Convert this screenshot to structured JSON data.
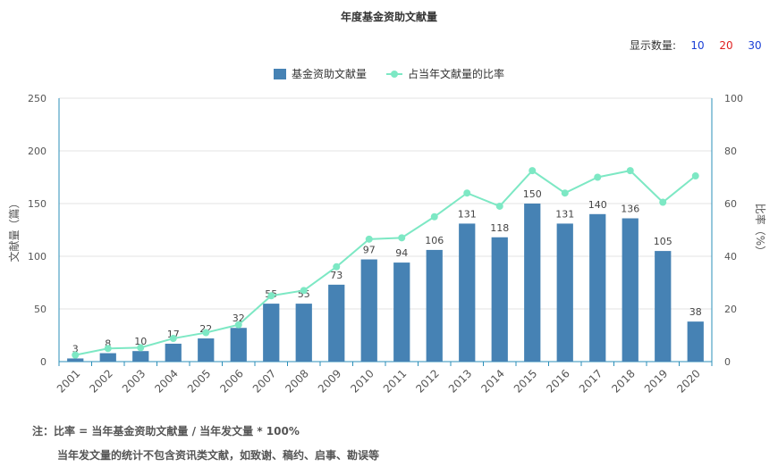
{
  "title": "年度基金资助文献量",
  "count_selector": {
    "label": "显示数量:",
    "options": [
      {
        "label": "10",
        "color": "#1a3fd6"
      },
      {
        "label": "20",
        "color": "#e02020"
      },
      {
        "label": "30",
        "color": "#1a3fd6"
      }
    ]
  },
  "legend": [
    {
      "label": "基金资助文献量",
      "color": "#4682b4",
      "kind": "bar"
    },
    {
      "label": "占当年文献量的比率",
      "color": "#7de8c4",
      "kind": "line"
    }
  ],
  "notes": {
    "line1": "注：比率 = 当年基金资助文献量 / 当年发文量 * 100%",
    "line2": "当年发文量的统计不包含资讯类文献，如致谢、稿约、启事、勘误等"
  },
  "chart_data": {
    "type": "bar",
    "categories": [
      "2001",
      "2002",
      "2003",
      "2004",
      "2005",
      "2006",
      "2007",
      "2008",
      "2009",
      "2010",
      "2011",
      "2012",
      "2013",
      "2014",
      "2015",
      "2016",
      "2017",
      "2018",
      "2019",
      "2020"
    ],
    "series": [
      {
        "name": "基金资助文献量",
        "type": "bar",
        "axis": "left",
        "color": "#4682b4",
        "values": [
          3,
          8,
          10,
          17,
          22,
          32,
          55,
          55,
          73,
          97,
          94,
          106,
          131,
          118,
          150,
          131,
          140,
          136,
          105,
          38
        ]
      },
      {
        "name": "占当年文献量的比率",
        "type": "line",
        "axis": "right",
        "color": "#7de8c4",
        "values": [
          2.5,
          5,
          5.3,
          8.8,
          11,
          14,
          25,
          27,
          36,
          46.5,
          47,
          55,
          64,
          59,
          72.5,
          64,
          70,
          72.5,
          60.5,
          70.5
        ]
      }
    ],
    "ylabel": "文献量（篇）",
    "ylabel_right": "比率（%）",
    "ylim": [
      0,
      250
    ],
    "ylim_right": [
      0,
      100
    ],
    "yticks": [
      0,
      50,
      100,
      150,
      200,
      250
    ],
    "yticks_right": [
      0,
      20,
      40,
      60,
      80,
      100
    ],
    "grid": true,
    "legend_position": "top-center",
    "axis_color": "#2b8fb8"
  }
}
